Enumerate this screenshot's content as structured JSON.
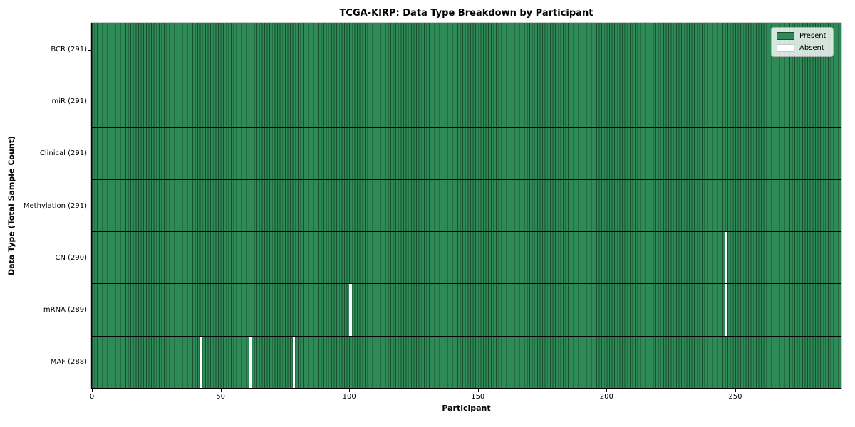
{
  "chart_data": {
    "type": "heatmap",
    "title": "TCGA-KIRP: Data Type Breakdown by Participant",
    "xlabel": "Participant",
    "ylabel": "Data Type (Total Sample Count)",
    "n_participants": 291,
    "x_range": [
      0,
      291
    ],
    "x_ticks": [
      0,
      50,
      100,
      150,
      200,
      250
    ],
    "grid": false,
    "rows": [
      {
        "label": "BCR (291)",
        "data_type": "BCR",
        "total_samples": 291,
        "absent_participants": []
      },
      {
        "label": "miR (291)",
        "data_type": "miR",
        "total_samples": 291,
        "absent_participants": []
      },
      {
        "label": "Clinical (291)",
        "data_type": "Clinical",
        "total_samples": 291,
        "absent_participants": []
      },
      {
        "label": "Methylation (291)",
        "data_type": "Methylation",
        "total_samples": 291,
        "absent_participants": []
      },
      {
        "label": "CN (290)",
        "data_type": "CN",
        "total_samples": 290,
        "absent_participants": [
          246
        ]
      },
      {
        "label": "mRNA (289)",
        "data_type": "mRNA",
        "total_samples": 289,
        "absent_participants": [
          100,
          246
        ]
      },
      {
        "label": "MAF (288)",
        "data_type": "MAF",
        "total_samples": 288,
        "absent_participants": [
          42,
          61,
          78
        ]
      }
    ],
    "legend": {
      "position": "upper right",
      "entries": [
        {
          "label": "Present",
          "color": "#2e8b57",
          "edge": "#1a4c30"
        },
        {
          "label": "Absent",
          "color": "#ffffff",
          "edge": "#c8c8c8"
        }
      ]
    },
    "colors": {
      "present": "#2e8b57",
      "absent": "#ffffff",
      "bar_edge": "#1a4c30",
      "row_separator": "#000000",
      "frame": "#000000",
      "background": "#ffffff"
    }
  }
}
